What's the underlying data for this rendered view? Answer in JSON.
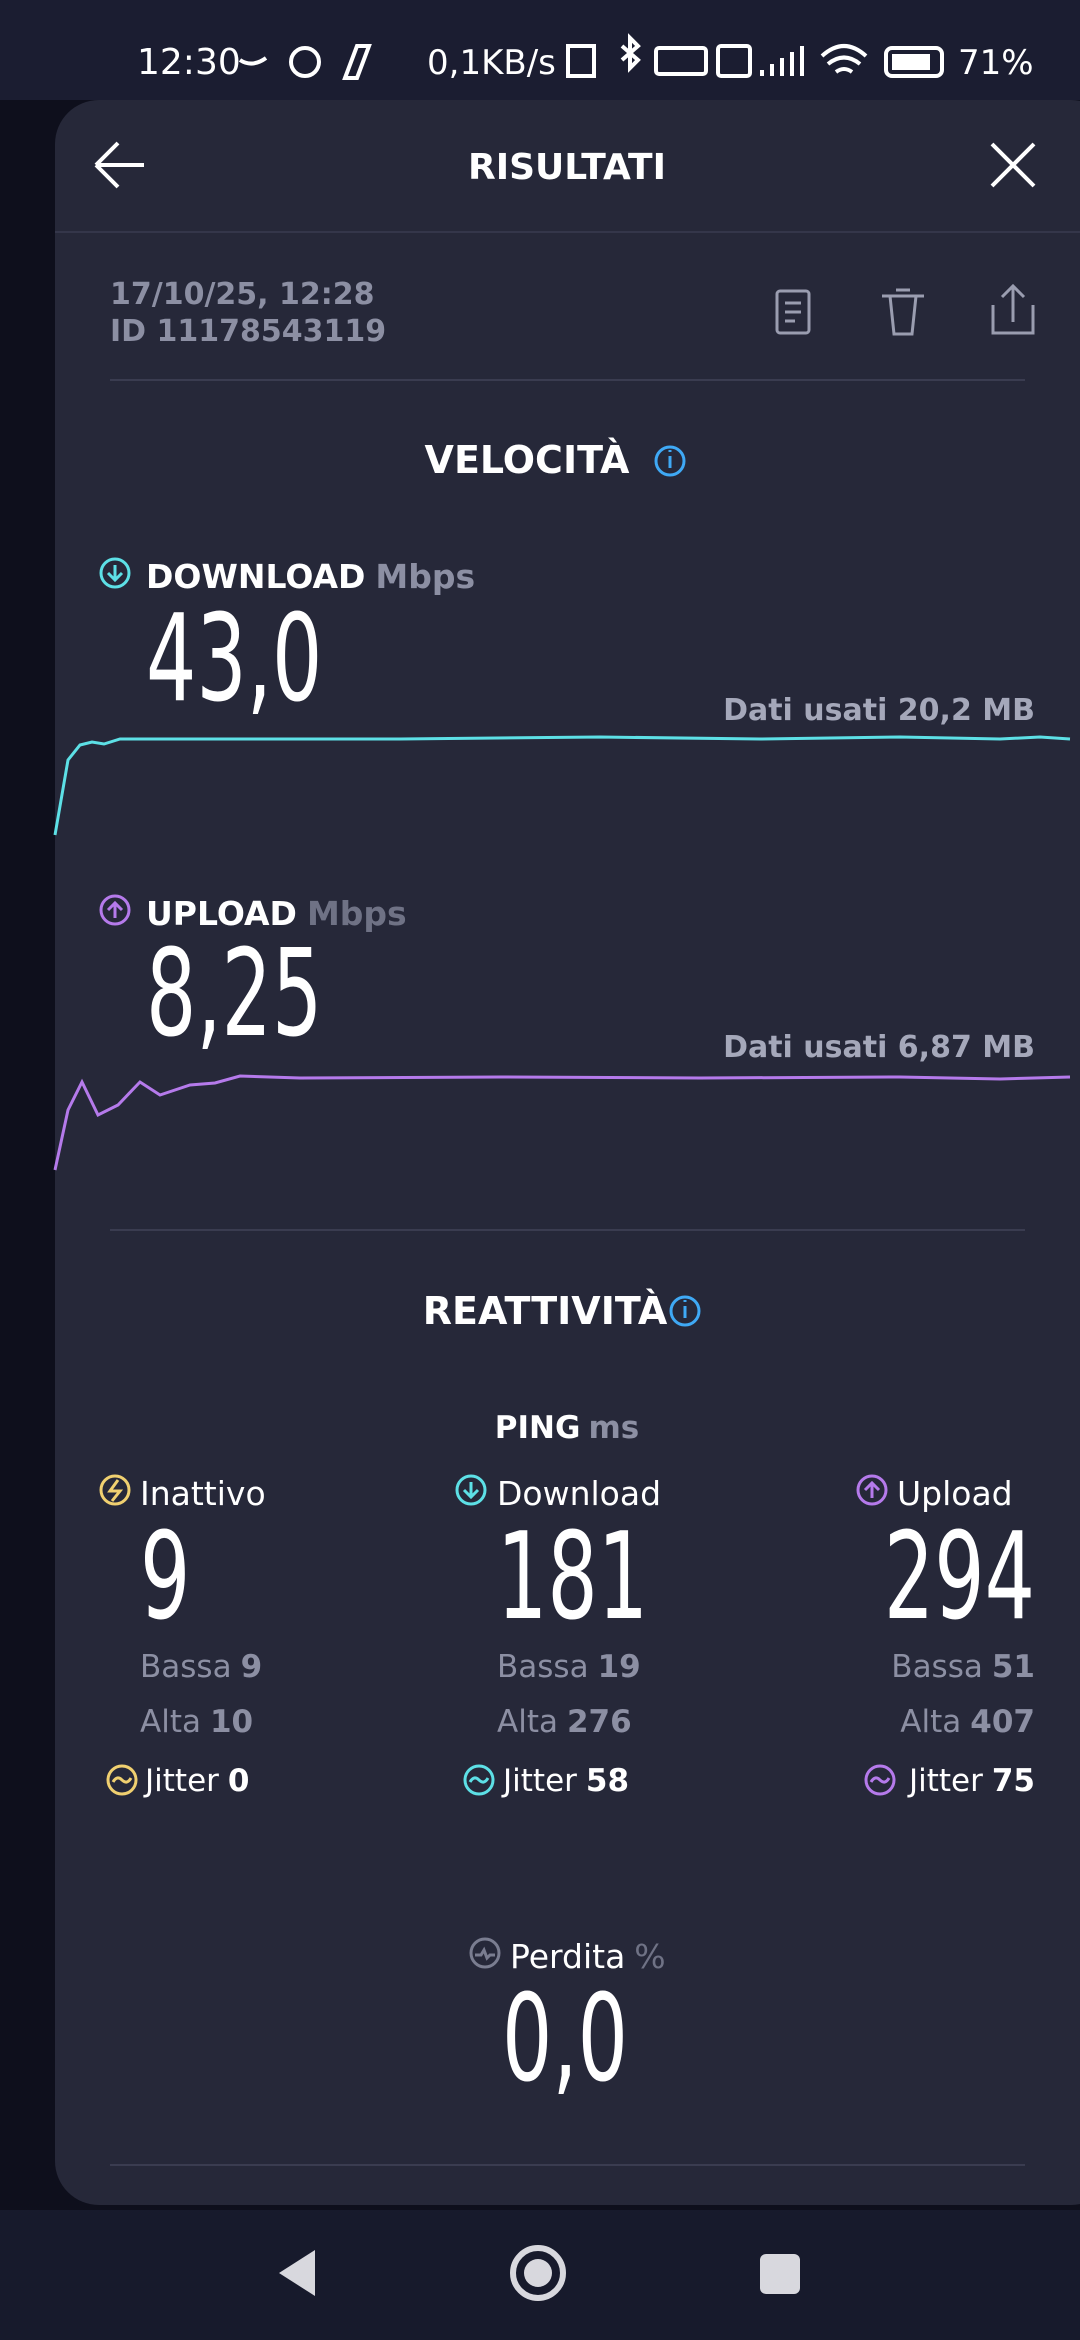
{
  "status_bar": {
    "time": "12:30",
    "network_speed": "0,1KB/s",
    "battery": "71%"
  },
  "header": {
    "title": "RISULTATI"
  },
  "meta": {
    "date": "17/10/25, 12:28",
    "id": "ID 11178543119"
  },
  "speed": {
    "title": "VELOCITÀ",
    "download": {
      "label": "DOWNLOAD",
      "unit": "Mbps",
      "value": "43,0",
      "data_used": "Dati usati 20,2 MB"
    },
    "upload": {
      "label": "UPLOAD",
      "unit": "Mbps",
      "value": "8,25",
      "data_used": "Dati usati 6,87 MB"
    }
  },
  "responsiveness": {
    "title": "REATTIVITÀ",
    "ping_label": "PING",
    "ping_unit": "ms",
    "columns": [
      {
        "label": "Inattivo",
        "value": "9",
        "low_label": "Bassa",
        "low": "9",
        "high_label": "Alta",
        "high": "10",
        "jitter_label": "Jitter",
        "jitter": "0"
      },
      {
        "label": "Download",
        "value": "181",
        "low_label": "Bassa",
        "low": "19",
        "high_label": "Alta",
        "high": "276",
        "jitter_label": "Jitter",
        "jitter": "58"
      },
      {
        "label": "Upload",
        "value": "294",
        "low_label": "Bassa",
        "low": "51",
        "high_label": "Alta",
        "high": "407",
        "jitter_label": "Jitter",
        "jitter": "75"
      }
    ],
    "loss": {
      "label": "Perdita",
      "unit": "%",
      "value": "0,0"
    }
  }
}
